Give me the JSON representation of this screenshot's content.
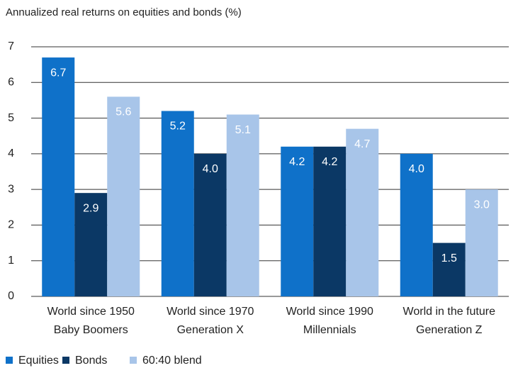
{
  "chart_data": {
    "type": "bar",
    "title": "Annualized real returns on equities and bonds (%)",
    "categories": [
      [
        "World since 1950",
        "Baby Boomers"
      ],
      [
        "World since 1970",
        "Generation X"
      ],
      [
        "World since 1990",
        "Millennials"
      ],
      [
        "World in the future",
        "Generation Z"
      ]
    ],
    "series": [
      {
        "name": "Equities",
        "color": "#0f71c9",
        "values": [
          6.7,
          5.2,
          4.2,
          4.0
        ],
        "value_labels": [
          "6.7",
          "5.2",
          "4.2",
          "4.0"
        ]
      },
      {
        "name": "Bonds",
        "color": "#0b3865",
        "values": [
          2.9,
          4.0,
          4.2,
          1.5
        ],
        "value_labels": [
          "2.9",
          "4.0",
          "4.2",
          "1.5"
        ]
      },
      {
        "name": "60:40 blend",
        "color": "#a8c5e9",
        "values": [
          5.6,
          5.1,
          4.7,
          3.0
        ],
        "value_labels": [
          "5.6",
          "5.1",
          "4.7",
          "3.0"
        ]
      }
    ],
    "ylim": [
      0,
      7
    ],
    "yticks": [
      0,
      1,
      2,
      3,
      4,
      5,
      6,
      7
    ],
    "grid": true,
    "legend": "bottom"
  }
}
